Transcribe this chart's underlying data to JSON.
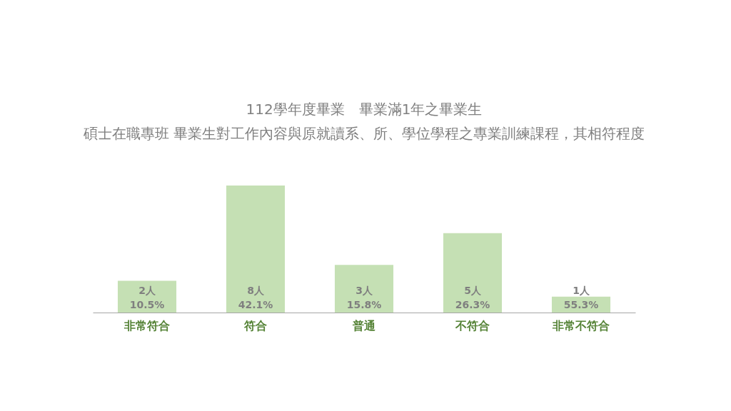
{
  "chart_data": {
    "type": "bar",
    "title": "112學年度畢業　畢業滿1年之畢業生",
    "subtitle": "碩士在職專班  畢業生對工作內容與原就讀系、所、學位學程之專業訓練課程，其相符程度",
    "categories": [
      "非常符合",
      "符合",
      "普通",
      "不符合",
      "非常不符合"
    ],
    "values": [
      2,
      8,
      3,
      5,
      1
    ],
    "value_labels": [
      "2人\n10.5%",
      "8人\n42.1%",
      "3人\n15.8%",
      "5人\n26.3%",
      "1人\n55.3%"
    ],
    "color": "#c5e0b4"
  }
}
